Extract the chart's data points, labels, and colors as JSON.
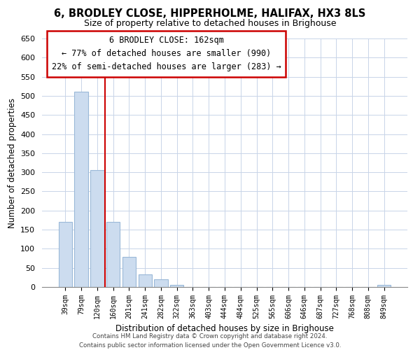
{
  "title": "6, BRODLEY CLOSE, HIPPERHOLME, HALIFAX, HX3 8LS",
  "subtitle": "Size of property relative to detached houses in Brighouse",
  "xlabel": "Distribution of detached houses by size in Brighouse",
  "ylabel": "Number of detached properties",
  "bar_labels": [
    "39sqm",
    "79sqm",
    "120sqm",
    "160sqm",
    "201sqm",
    "241sqm",
    "282sqm",
    "322sqm",
    "363sqm",
    "403sqm",
    "444sqm",
    "484sqm",
    "525sqm",
    "565sqm",
    "606sqm",
    "646sqm",
    "687sqm",
    "727sqm",
    "768sqm",
    "808sqm",
    "849sqm"
  ],
  "bar_values": [
    170,
    510,
    305,
    170,
    78,
    33,
    20,
    5,
    0,
    0,
    0,
    0,
    0,
    0,
    0,
    0,
    0,
    0,
    0,
    0,
    5
  ],
  "bar_color": "#ccdcef",
  "bar_edge_color": "#9ab8d8",
  "vline_color": "#cc0000",
  "ylim": [
    0,
    650
  ],
  "yticks": [
    0,
    50,
    100,
    150,
    200,
    250,
    300,
    350,
    400,
    450,
    500,
    550,
    600,
    650
  ],
  "annotation_title": "6 BRODLEY CLOSE: 162sqm",
  "annotation_line1": "← 77% of detached houses are smaller (990)",
  "annotation_line2": "22% of semi-detached houses are larger (283) →",
  "footer_line1": "Contains HM Land Registry data © Crown copyright and database right 2024.",
  "footer_line2": "Contains public sector information licensed under the Open Government Licence v3.0.",
  "background_color": "#ffffff",
  "grid_color": "#c8d4e8"
}
